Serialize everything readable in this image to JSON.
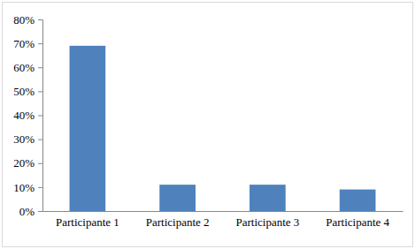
{
  "chart_data": {
    "type": "bar",
    "categories": [
      "Participante 1",
      "Participante 2",
      "Participante 3",
      "Participante 4"
    ],
    "values": [
      69,
      11,
      11,
      9
    ],
    "color": "#4f81bd",
    "ylim": [
      0,
      80
    ],
    "yticks": [
      {
        "value": 0,
        "label": "0%"
      },
      {
        "value": 10,
        "label": "10%"
      },
      {
        "value": 20,
        "label": "20%"
      },
      {
        "value": 30,
        "label": "30%"
      },
      {
        "value": 40,
        "label": "40%"
      },
      {
        "value": 50,
        "label": "50%"
      },
      {
        "value": 60,
        "label": "60%"
      },
      {
        "value": 70,
        "label": "70%"
      },
      {
        "value": 80,
        "label": "80%"
      }
    ],
    "grid": false
  }
}
